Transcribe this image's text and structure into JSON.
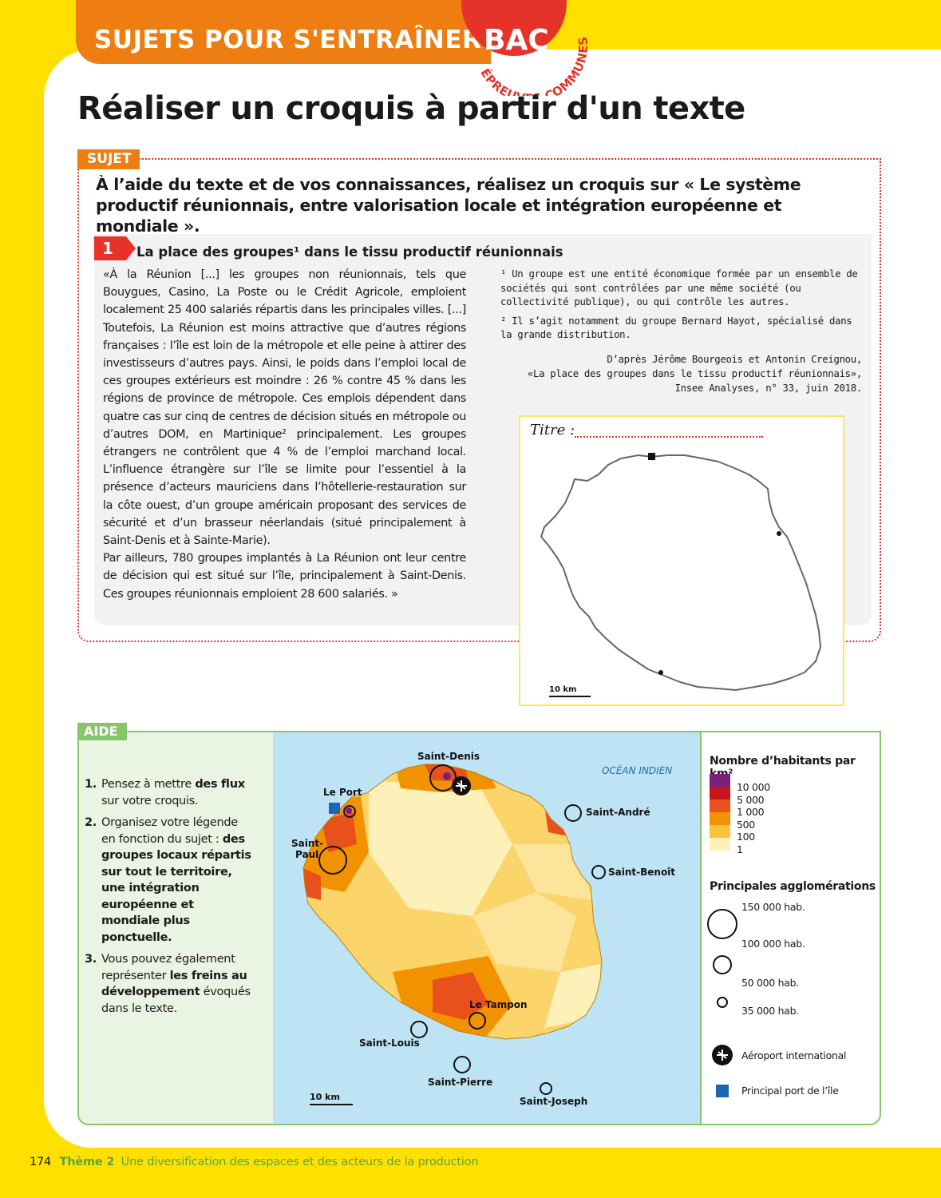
{
  "header": {
    "section_title": "SUJETS POUR S'ENTRAÎNER",
    "bac_label": "BAC",
    "bac_sub": "ÉPREUVES COMMUNES"
  },
  "main_title": "Réaliser un croquis à partir d'un texte",
  "sujet": {
    "tag": "SUJET",
    "prompt": "À l’aide du texte et de vos connaissances, réalisez un croquis sur « Le système productif réunionnais, entre valorisation locale et intégration européenne et mondiale »."
  },
  "document": {
    "number": "1",
    "title": "La place des groupes¹ dans le tissu productif réunionnais",
    "text_p1": "«À la Réunion [...] les groupes non réunionnais, tels que Bouygues, Casino, La Poste ou le Crédit Agricole, emploient localement 25 400 salariés répartis dans les principales villes. [...] Toutefois, La Réunion est moins attractive que d’autres régions françaises : l’île est loin de la métropole et elle peine à attirer des investisseurs d’autres pays. Ainsi, le poids dans l’emploi local de ces groupes extérieurs est moindre : 26 % contre 45 % dans les régions de province de métropole. Ces emplois dépendent dans quatre cas sur cinq de centres de décision situés en métropole ou d’autres DOM, en Martinique² principalement. Les groupes étrangers ne contrôlent que 4 % de l’emploi marchand local. L’influence étrangère sur l’île se limite pour l’essentiel à la présence d’acteurs mauriciens dans l’hôtellerie-restauration sur la côte ouest, d’un groupe américain proposant des services de sécurité et d’un brasseur néerlandais (situé principalement à Saint-Denis et à Sainte-Marie).",
    "text_p2": "Par ailleurs, 780 groupes implantés à La Réunion ont leur centre de décision qui est situé sur l’île, principalement à Saint-Denis. Ces groupes réunionnais emploient 28 600 salariés. »",
    "footnote1": "¹ Un groupe est une entité économique formée par un ensemble de sociétés qui sont contrôlées par une même société (ou collectivité publique), ou qui contrôle les autres.",
    "footnote2": "² Il s’agit notamment du groupe Bernard Hayot, spécialisé dans la grande distribution.",
    "source_line1": "D’après Jérôme Bourgeois et Antonin Creignou,",
    "source_line2": "«La place des groupes dans le tissu productif réunionnais»,",
    "source_line3": "Insee Analyses, n° 33, juin 2018."
  },
  "croquis": {
    "title_label": "Titre :",
    "scale_label": "10 km"
  },
  "aide": {
    "tag": "AIDE",
    "items": [
      {
        "num": "1.",
        "pre": "Pensez à mettre ",
        "bold": "des flux",
        "post": " sur votre croquis."
      },
      {
        "num": "2.",
        "pre": "Organisez votre légende en fonction du sujet : ",
        "bold": "des groupes locaux répartis sur tout le territoire, une intégration européenne et mondiale plus ponctuelle.",
        "post": ""
      },
      {
        "num": "3.",
        "pre": "Vous pouvez également représenter ",
        "bold": "les freins au développement",
        "post": " évoqués dans le texte."
      }
    ]
  },
  "map": {
    "ocean_label": "OCÉAN INDIEN",
    "scale_label": "10 km",
    "cities": {
      "saint_denis": "Saint-Denis",
      "le_port": "Le Port",
      "saint_paul": "Saint-\nPaul",
      "saint_andre": "Saint-André",
      "saint_benoit": "Saint-Benoît",
      "le_tampon": "Le Tampon",
      "saint_louis": "Saint-Louis",
      "saint_pierre": "Saint-Pierre",
      "saint_joseph": "Saint-Joseph"
    }
  },
  "legend": {
    "density_title": "Nombre d’habitants par km²",
    "density_classes": [
      {
        "label": "10 000",
        "color": "#7b1f7a"
      },
      {
        "label": "5 000",
        "color": "#c4161c"
      },
      {
        "label": "1 000",
        "color": "#e8501c"
      },
      {
        "label": "500",
        "color": "#f39200"
      },
      {
        "label": "100",
        "color": "#fbc33d"
      },
      {
        "label": "1",
        "color": "#fdf0b8"
      }
    ],
    "agglo_title": "Principales agglomérations",
    "agglo_sizes": [
      "150 000 hab.",
      "100 000 hab.",
      "50 000 hab.",
      "35 000 hab."
    ],
    "airport_label": "Aéroport international",
    "port_label": "Principal port de l’île"
  },
  "footer": {
    "page_number": "174",
    "theme": "Thème 2",
    "description": "Une diversification des espaces et des acteurs de la production"
  }
}
